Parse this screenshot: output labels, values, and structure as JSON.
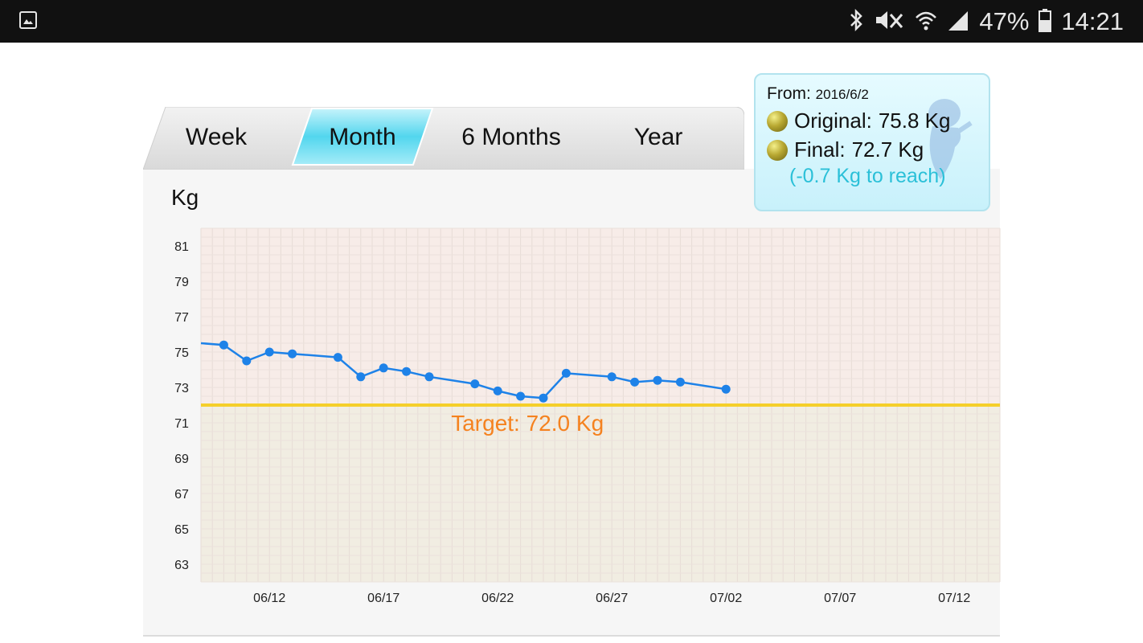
{
  "status_bar": {
    "battery": "47%",
    "time": "14:21",
    "icons": [
      "gallery-icon",
      "bluetooth-icon",
      "mute-icon",
      "wifi-icon",
      "signal-icon",
      "battery-icon"
    ]
  },
  "tabs": [
    {
      "label": "Week",
      "selected": false
    },
    {
      "label": "Month",
      "selected": true
    },
    {
      "label": "6 Months",
      "selected": false
    },
    {
      "label": "Year",
      "selected": false
    }
  ],
  "chart": {
    "unit": "Kg",
    "target_label": "Target: 72.0 Kg"
  },
  "summary": {
    "from_label": "From:",
    "from_date": "2016/6/2",
    "original_label": "Original:",
    "original_value": "75.8 Kg",
    "final_label": "Final:",
    "final_value": "72.7 Kg",
    "to_reach": "(-0.7 Kg to reach)"
  },
  "colors": {
    "line": "#1e82e8",
    "target": "#f5cf2a",
    "target_text": "#f5821f",
    "accent": "#2bc0d8"
  },
  "chart_data": {
    "type": "line",
    "ylabel": "Kg",
    "ylim": [
      62,
      82
    ],
    "yticks": [
      81,
      79,
      77,
      75,
      73,
      71,
      69,
      67,
      65,
      63
    ],
    "xlim": [
      "06/09",
      "07/14"
    ],
    "xticks": [
      "06/12",
      "06/17",
      "06/22",
      "06/27",
      "07/02",
      "07/07",
      "07/12"
    ],
    "grid": true,
    "target": 72.0,
    "series": [
      {
        "x": [
          "06/09",
          "06/10",
          "06/11",
          "06/12",
          "06/13",
          "06/15",
          "06/16",
          "06/17",
          "06/18",
          "06/19",
          "06/21",
          "06/22",
          "06/23",
          "06/24",
          "06/25",
          "06/27",
          "06/28",
          "06/29",
          "06/30",
          "07/02"
        ],
        "values": [
          75.5,
          75.4,
          74.5,
          75.0,
          74.9,
          74.7,
          73.6,
          74.1,
          73.9,
          73.6,
          73.2,
          72.8,
          72.5,
          72.4,
          73.8,
          73.6,
          73.3,
          73.4,
          73.3,
          72.9
        ]
      }
    ]
  }
}
